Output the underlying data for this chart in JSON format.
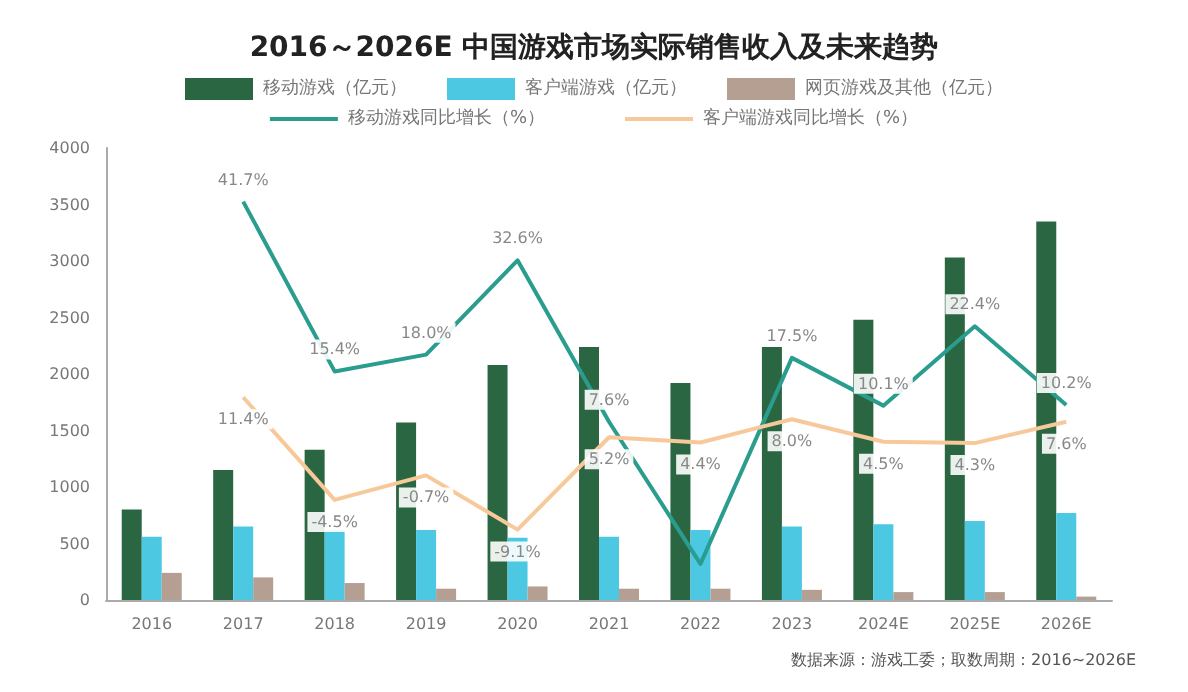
{
  "chart_data": {
    "type": "bar",
    "title": "2016～2026E 中国游戏市场实际销售收入及未来趋势",
    "categories": [
      "2016",
      "2017",
      "2018",
      "2019",
      "2020",
      "2021",
      "2022",
      "2023",
      "2024E",
      "2025E",
      "2026E"
    ],
    "series": [
      {
        "name": "移动游戏（亿元）",
        "color": "#2a6641",
        "values": [
          800,
          1150,
          1330,
          1570,
          2080,
          2240,
          1920,
          2240,
          2480,
          3030,
          3350
        ]
      },
      {
        "name": "客户端游戏（亿元）",
        "color": "#4dc8e3",
        "values": [
          560,
          650,
          620,
          620,
          550,
          560,
          620,
          650,
          670,
          700,
          770
        ]
      },
      {
        "name": "网页游戏及其他（亿元）",
        "color": "#b59e92",
        "values": [
          240,
          200,
          150,
          100,
          120,
          100,
          100,
          90,
          70,
          70,
          30
        ]
      },
      {
        "name": "移动游戏同比增长（%）",
        "type": "line",
        "axis": "y2",
        "color": "#2a9d8f",
        "values": [
          null,
          41.7,
          15.4,
          18.0,
          32.6,
          7.6,
          -14.4,
          17.5,
          10.1,
          22.4,
          10.2
        ],
        "value_labels": [
          null,
          "41.7%",
          "15.4%",
          "18.0%",
          "32.6%",
          "7.6%",
          null,
          "17.5%",
          "10.1%",
          "22.4%",
          "10.2%"
        ]
      },
      {
        "name": "客户端游戏同比增长（%）",
        "type": "line",
        "axis": "y2",
        "color": "#f7c99a",
        "values": [
          null,
          11.4,
          -4.5,
          -0.7,
          -9.1,
          5.2,
          4.4,
          8.0,
          4.5,
          4.3,
          7.6
        ],
        "value_labels": [
          null,
          "11.4%",
          "-4.5%",
          "-0.7%",
          "-9.1%",
          "5.2%",
          "4.4%",
          "8.0%",
          "4.5%",
          "4.3%",
          "7.6%"
        ]
      }
    ],
    "ylim": [
      0,
      4000
    ],
    "yticks": [
      0,
      500,
      1000,
      1500,
      2000,
      2500,
      3000,
      3500,
      4000
    ],
    "grid": false,
    "legend": "top",
    "marker": "none",
    "annotations": [
      "数据来源：游戏工委；取数周期：2016~2026E"
    ]
  }
}
